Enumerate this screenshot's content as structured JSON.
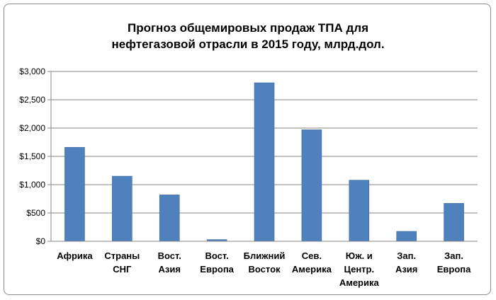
{
  "chart_data": {
    "type": "bar",
    "title_lines": [
      "Прогноз общемировых продаж ТПА для",
      "нефтегазовой отрасли в 2015 году, млрд.дол."
    ],
    "categories": [
      [
        "Африка"
      ],
      [
        "Страны",
        "СНГ"
      ],
      [
        "Вост.",
        "Азия"
      ],
      [
        "Вост.",
        "Европа"
      ],
      [
        "Ближний",
        "Восток"
      ],
      [
        "Сев.",
        "Америка"
      ],
      [
        "Юж. и",
        "Центр.",
        "Америка"
      ],
      [
        "Зап.",
        "Азия"
      ],
      [
        "Зап.",
        "Европа"
      ]
    ],
    "values": [
      1660,
      1150,
      820,
      30,
      2800,
      1970,
      1080,
      175,
      670
    ],
    "ylim": [
      0,
      3000
    ],
    "yticks": [
      0,
      500,
      1000,
      1500,
      2000,
      2500,
      3000
    ],
    "ytick_labels": [
      "$0",
      "$500",
      "$1,000",
      "$1,500",
      "$2,000",
      "$2,500",
      "$3,000"
    ],
    "grid": true,
    "bar_color": "#4f81bd",
    "grid_color": "#868686"
  }
}
